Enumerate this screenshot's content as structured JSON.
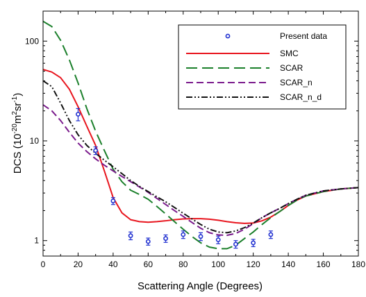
{
  "chart_data": {
    "type": "line",
    "title": "",
    "xlabel": "Scattering Angle (Degrees)",
    "ylabel_main": "DCS (10",
    "ylabel_exp1": "-20",
    "ylabel_unit": "m",
    "ylabel_exp2": "2",
    "ylabel_unit2": "sr",
    "ylabel_exp3": "-1",
    "ylabel_close": ")",
    "xlim": [
      0,
      180
    ],
    "ylim": [
      0.7,
      200
    ],
    "yscale": "log",
    "grid": false,
    "legend_position": "top-right",
    "x_ticks": [
      "0",
      "20",
      "40",
      "60",
      "80",
      "100",
      "120",
      "140",
      "160",
      "180"
    ],
    "y_ticks": [
      "1",
      "10",
      "100"
    ],
    "series": [
      {
        "name": "Present data",
        "kind": "points",
        "color": "#1f2fd0",
        "x": [
          20,
          30,
          40,
          50,
          60,
          70,
          80,
          90,
          100,
          110,
          120,
          130
        ],
        "y": [
          18.5,
          8.0,
          2.5,
          1.12,
          0.98,
          1.05,
          1.15,
          1.1,
          1.02,
          0.92,
          0.95,
          1.15
        ],
        "err": [
          2.6,
          0.7,
          0.2,
          0.1,
          0.08,
          0.09,
          0.1,
          0.1,
          0.09,
          0.08,
          0.08,
          0.1
        ]
      },
      {
        "name": "SMC",
        "kind": "line",
        "color": "#e8141d",
        "dash": "solid",
        "x": [
          0,
          5,
          10,
          15,
          20,
          25,
          30,
          35,
          40,
          45,
          50,
          55,
          60,
          65,
          70,
          75,
          80,
          85,
          90,
          95,
          100,
          105,
          110,
          115,
          120,
          125,
          130,
          135,
          140,
          145,
          150,
          160,
          170,
          180
        ],
        "y": [
          52,
          49,
          43,
          33,
          22,
          14,
          9.0,
          5.0,
          2.7,
          1.9,
          1.62,
          1.55,
          1.53,
          1.55,
          1.58,
          1.62,
          1.65,
          1.66,
          1.66,
          1.64,
          1.6,
          1.55,
          1.51,
          1.49,
          1.5,
          1.58,
          1.72,
          1.95,
          2.25,
          2.55,
          2.8,
          3.1,
          3.3,
          3.4
        ]
      },
      {
        "name": "SCAR",
        "kind": "line",
        "color": "#1a7f2a",
        "dash": "long",
        "x": [
          0,
          5,
          10,
          15,
          20,
          25,
          30,
          35,
          40,
          45,
          50,
          55,
          60,
          65,
          70,
          75,
          80,
          85,
          90,
          95,
          100,
          105,
          110,
          115,
          120,
          125,
          130,
          135,
          140,
          145,
          150,
          160,
          170,
          180
        ],
        "y": [
          158,
          140,
          102,
          65,
          38,
          21,
          12.5,
          8.0,
          5.2,
          3.9,
          3.2,
          2.9,
          2.6,
          2.2,
          1.85,
          1.55,
          1.3,
          1.1,
          0.95,
          0.86,
          0.83,
          0.83,
          0.9,
          1.05,
          1.22,
          1.45,
          1.7,
          1.95,
          2.25,
          2.55,
          2.8,
          3.1,
          3.3,
          3.4
        ]
      },
      {
        "name": "SCAR_n",
        "kind": "line",
        "color": "#7a1a8c",
        "dash": "medium",
        "x": [
          0,
          5,
          10,
          15,
          20,
          25,
          30,
          35,
          40,
          45,
          50,
          55,
          60,
          65,
          70,
          75,
          80,
          85,
          90,
          95,
          100,
          105,
          110,
          115,
          120,
          125,
          130,
          135,
          140,
          145,
          150,
          160,
          170,
          180
        ],
        "y": [
          23,
          20,
          16,
          12.2,
          9.5,
          7.8,
          6.6,
          5.7,
          5.0,
          4.4,
          3.9,
          3.45,
          3.05,
          2.65,
          2.3,
          2.0,
          1.75,
          1.52,
          1.33,
          1.2,
          1.14,
          1.13,
          1.18,
          1.3,
          1.48,
          1.7,
          1.9,
          2.1,
          2.35,
          2.6,
          2.85,
          3.15,
          3.3,
          3.4
        ]
      },
      {
        "name": "SCAR_n_d",
        "kind": "line",
        "color": "#111111",
        "dash": "dashdotdot",
        "x": [
          0,
          5,
          10,
          15,
          20,
          25,
          30,
          35,
          40,
          45,
          50,
          55,
          60,
          65,
          70,
          75,
          80,
          85,
          90,
          95,
          100,
          105,
          110,
          115,
          120,
          125,
          130,
          135,
          140,
          145,
          150,
          160,
          170,
          180
        ],
        "y": [
          40,
          35,
          24,
          16,
          11.5,
          9.0,
          7.5,
          6.4,
          5.5,
          4.7,
          4.0,
          3.5,
          3.1,
          2.75,
          2.45,
          2.15,
          1.88,
          1.65,
          1.45,
          1.3,
          1.22,
          1.2,
          1.25,
          1.35,
          1.5,
          1.7,
          1.9,
          2.1,
          2.35,
          2.6,
          2.85,
          3.15,
          3.3,
          3.4
        ]
      }
    ]
  }
}
